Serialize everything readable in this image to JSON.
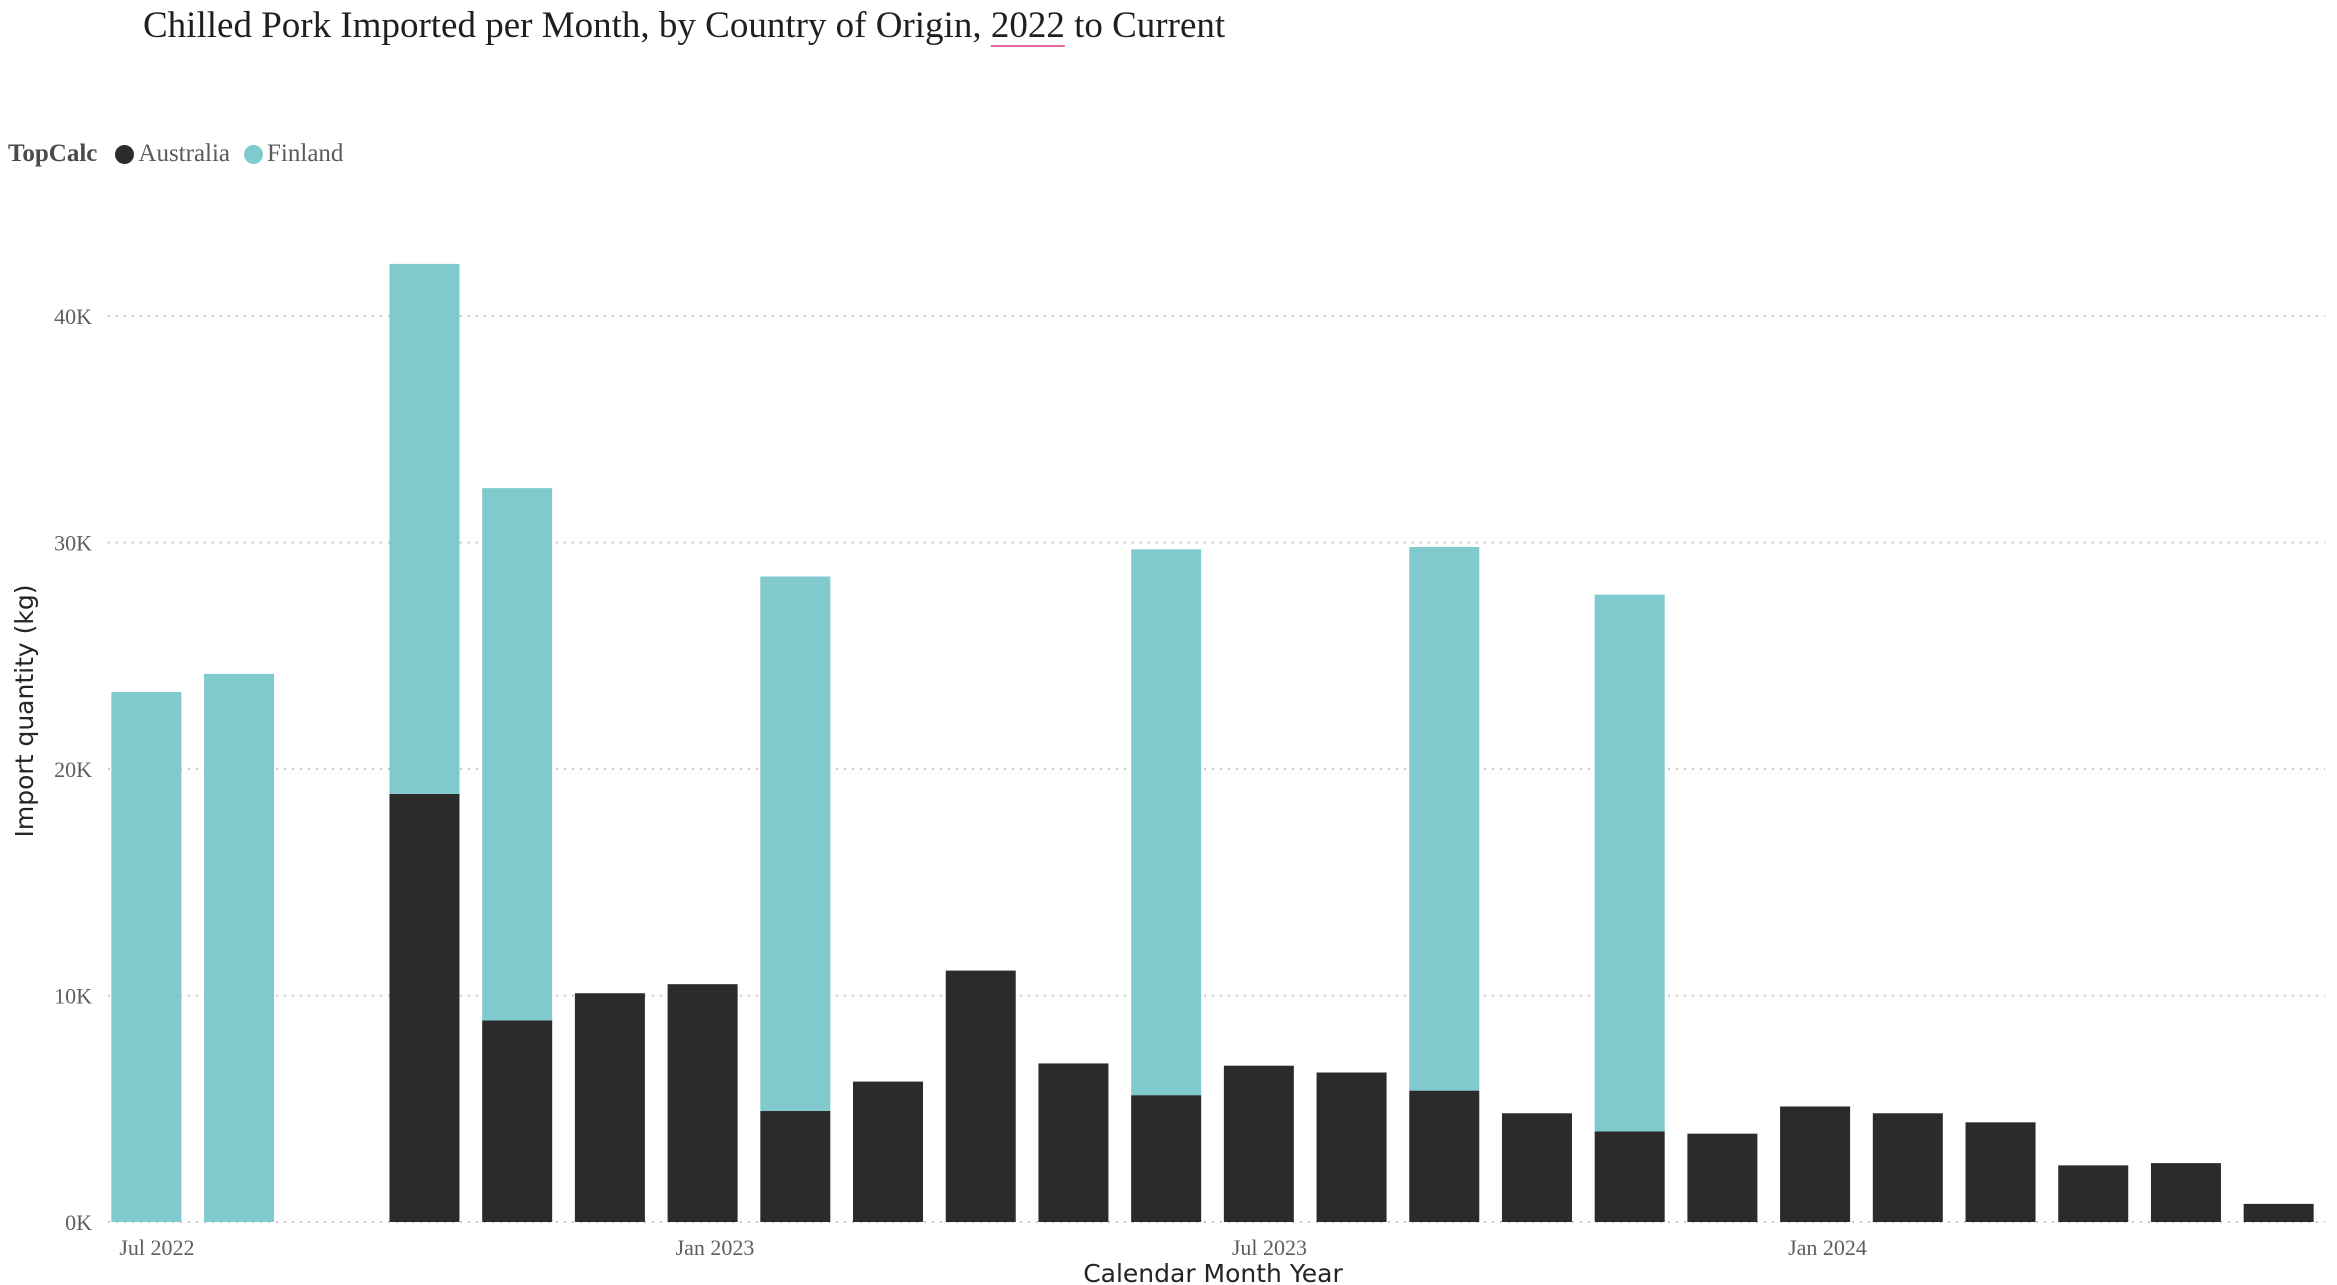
{
  "title": {
    "before": "Chilled Pork Imported per Month, by Country of Origin, ",
    "highlight": "2022",
    "after": " to Current"
  },
  "legend": {
    "title": "TopCalc",
    "items": [
      {
        "label": "Australia",
        "color": "#2b2b2b"
      },
      {
        "label": "Finland",
        "color": "#80cacd"
      }
    ]
  },
  "chart_data": {
    "type": "bar",
    "stacked": true,
    "xlabel": "Calendar Month Year",
    "ylabel": "Import quantity (kg)",
    "ylim": [
      0,
      44000
    ],
    "yticks": [
      0,
      10000,
      20000,
      30000,
      40000
    ],
    "ytick_labels": [
      "0K",
      "10K",
      "20K",
      "30K",
      "40K"
    ],
    "grid": "horizontal dotted",
    "legend_position": "top-left",
    "categories": [
      "2022-07",
      "2022-08",
      "2022-09",
      "2022-10",
      "2022-11",
      "2022-12",
      "2023-01",
      "2023-02",
      "2023-03",
      "2023-04",
      "2023-05",
      "2023-06",
      "2023-07",
      "2023-08",
      "2023-09",
      "2023-10",
      "2023-11",
      "2023-12",
      "2024-01",
      "2024-02",
      "2024-03",
      "2024-04",
      "2024-05",
      "2024-06"
    ],
    "xticks": [
      {
        "category": "2022-07",
        "label": "Jul 2022"
      },
      {
        "category": "2023-01",
        "label": "Jan 2023"
      },
      {
        "category": "2023-07",
        "label": "Jul 2023"
      },
      {
        "category": "2024-01",
        "label": "Jan 2024"
      }
    ],
    "series": [
      {
        "name": "Australia",
        "color": "#2b2b2b",
        "values": [
          0,
          0,
          null,
          18900,
          8900,
          10100,
          10500,
          4900,
          6200,
          11100,
          7000,
          5600,
          6900,
          6600,
          5800,
          4800,
          4000,
          3900,
          5100,
          4800,
          4400,
          2500,
          2600,
          800
        ]
      },
      {
        "name": "Finland",
        "color": "#80cacd",
        "values": [
          23400,
          24200,
          null,
          23400,
          23500,
          0,
          0,
          23600,
          0,
          0,
          0,
          24100,
          0,
          0,
          24000,
          0,
          23700,
          0,
          0,
          0,
          0,
          0,
          0,
          0
        ]
      }
    ]
  }
}
